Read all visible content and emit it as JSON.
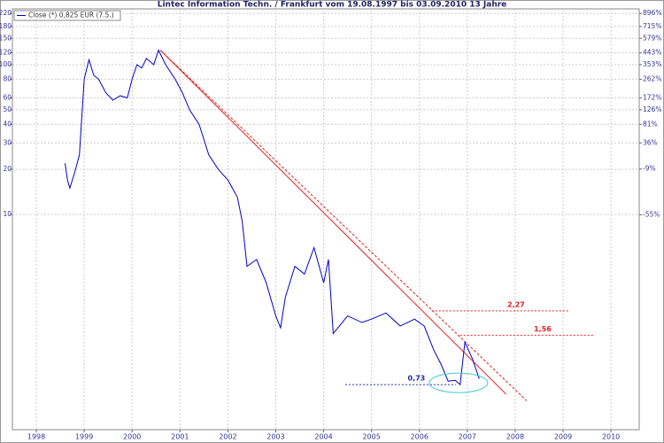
{
  "chart_data": {
    "type": "line",
    "title": "Lintec Information Techn. / Frankfurt vom 19.08.1997 bis 03.09.2010 13 Jahre",
    "series": [
      {
        "name": "Close (*) 0,825 EUR (7.5.)",
        "color": "#0000cc",
        "x": [
          1998.6,
          1998.65,
          1998.7,
          1998.8,
          1998.9,
          1999.0,
          1999.1,
          1999.2,
          1999.3,
          1999.45,
          1999.6,
          1999.75,
          1999.9,
          2000.0,
          2000.1,
          2000.2,
          2000.3,
          2000.45,
          2000.55,
          2000.7,
          2000.9,
          2001.05,
          2001.2,
          2001.4,
          2001.6,
          2001.8,
          2002.0,
          2002.2,
          2002.3,
          2002.4,
          2002.6,
          2002.8,
          2003.0,
          2003.1,
          2003.2,
          2003.4,
          2003.6,
          2003.8,
          2004.0,
          2004.1,
          2004.2,
          2004.5,
          2004.8,
          2005.0,
          2005.3,
          2005.6,
          2005.9,
          2006.1,
          2006.3,
          2006.45,
          2006.6,
          2006.75,
          2006.85,
          2006.95,
          2007.1,
          2007.25
        ],
        "values": [
          22,
          17,
          15,
          19,
          25,
          80,
          108,
          85,
          80,
          65,
          58,
          62,
          60,
          80,
          100,
          95,
          110,
          100,
          125,
          100,
          80,
          65,
          50,
          40,
          25,
          20,
          17,
          13,
          9,
          4.5,
          5,
          3.5,
          2.1,
          1.75,
          2.8,
          4.5,
          4,
          6,
          3.5,
          5,
          1.6,
          2.1,
          1.9,
          2.0,
          2.2,
          1.8,
          2.0,
          1.8,
          1.24,
          1.0,
          0.77,
          0.78,
          0.73,
          1.4,
          1.1,
          0.8
        ]
      }
    ],
    "ylog": true,
    "ylim": [
      0.365,
      236
    ],
    "yticks": [
      10,
      20,
      30,
      40,
      50,
      60,
      80,
      100,
      120,
      150,
      180,
      220
    ],
    "y2scale": "log1p",
    "y2lim": [
      -98.35,
      968.4
    ],
    "y2ticks": [
      {
        "value": 896,
        "label": "896%"
      },
      {
        "value": 715,
        "label": "715%"
      },
      {
        "value": 579,
        "label": "579%"
      },
      {
        "value": 443,
        "label": "443%"
      },
      {
        "value": 353,
        "label": "353%"
      },
      {
        "value": 262,
        "label": "262%"
      },
      {
        "value": 172,
        "label": "172%"
      },
      {
        "value": 126,
        "label": "126%"
      },
      {
        "value": 81,
        "label": "81%"
      },
      {
        "value": 36,
        "label": "36%"
      },
      {
        "value": -9,
        "label": "-9%"
      },
      {
        "value": -55,
        "label": "-55%"
      }
    ],
    "xlim": [
      1997.5,
      2010.59
    ],
    "xticks": [
      1998,
      1999,
      2000,
      2001,
      2002,
      2003,
      2004,
      2005,
      2006,
      2007,
      2008,
      2009,
      2010
    ],
    "grid": true,
    "trendlines": [
      {
        "x": [
          2000.59,
          2007.81
        ],
        "y": [
          125,
          0.63
        ],
        "color": "#e02020",
        "dashed": false
      },
      {
        "x": [
          2000.59,
          2008.24
        ],
        "y": [
          125,
          0.57
        ],
        "color": "#e02020",
        "dashed": true
      }
    ],
    "levels": [
      {
        "value": 2.27,
        "label": "2,27",
        "x": [
          2006.26,
          2009.11
        ],
        "color": "#e02020"
      },
      {
        "value": 1.56,
        "label": "1,56",
        "x": [
          2006.85,
          2009.63
        ],
        "color": "#e02020"
      },
      {
        "value": 0.73,
        "label": "0,73",
        "x": [
          2004.45,
          2006.76
        ],
        "color": "#2030a0"
      }
    ],
    "highlight_color": "#40c8e0"
  }
}
